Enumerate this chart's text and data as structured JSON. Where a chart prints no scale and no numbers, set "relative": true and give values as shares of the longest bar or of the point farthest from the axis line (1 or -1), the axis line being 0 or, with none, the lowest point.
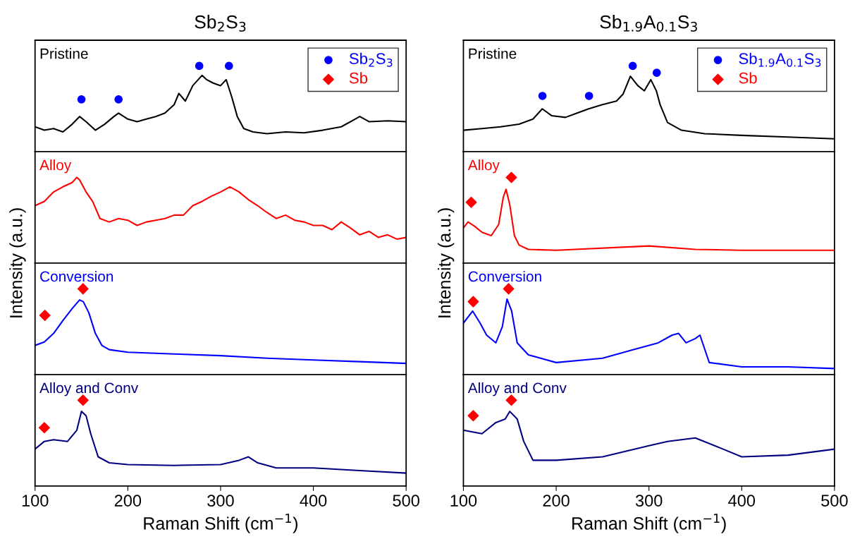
{
  "chart_data": [
    {
      "type": "line",
      "relative": true,
      "title": "Sb$_{2}$S$_{3}$",
      "annotations": [
        "Pristine"
      ],
      "xlim": [
        100,
        500
      ],
      "tick_labels": false,
      "legend": "top right",
      "series": [
        {
          "color": "#000000",
          "x": [
            100,
            110,
            120,
            130,
            140,
            148,
            155,
            165,
            175,
            185,
            190,
            200,
            210,
            220,
            230,
            240,
            250,
            255,
            262,
            270,
            280,
            285,
            292,
            300,
            306,
            312,
            318,
            325,
            335,
            350,
            370,
            390,
            410,
            430,
            445,
            450,
            460,
            480,
            500
          ],
          "values": [
            0.29,
            0.25,
            0.27,
            0.23,
            0.32,
            0.41,
            0.35,
            0.25,
            0.32,
            0.41,
            0.45,
            0.38,
            0.35,
            0.38,
            0.41,
            0.45,
            0.55,
            0.68,
            0.59,
            0.77,
            0.89,
            0.84,
            0.8,
            0.77,
            0.84,
            0.64,
            0.41,
            0.27,
            0.23,
            0.21,
            0.23,
            0.22,
            0.25,
            0.29,
            0.38,
            0.41,
            0.35,
            0.36,
            0.35
          ]
        },
        {
          "type": "scatter",
          "name": "Sb$_{2}$S$_{3}$",
          "color": "#0000ff",
          "marker": "circle",
          "x": [
            150,
            190,
            277,
            309
          ],
          "values": [
            0.61,
            0.61,
            1.0,
            1.0
          ]
        },
        {
          "type": "scatter",
          "name": "Sb",
          "color": "#ff0000",
          "marker": "diamond"
        }
      ]
    },
    {
      "type": "line",
      "relative": true,
      "ylabel": "Intensity (a.u.)",
      "annotations": [
        "Alloy"
      ],
      "xlim": [
        100,
        500
      ],
      "tick_labels": false,
      "series": [
        {
          "color": "#ff0000",
          "x": [
            100,
            110,
            120,
            130,
            140,
            145,
            148,
            155,
            162,
            170,
            180,
            190,
            200,
            210,
            220,
            230,
            240,
            250,
            260,
            270,
            280,
            290,
            300,
            310,
            320,
            330,
            340,
            350,
            360,
            370,
            380,
            390,
            400,
            410,
            420,
            430,
            440,
            450,
            460,
            470,
            480,
            490,
            500
          ],
          "values": [
            0.67,
            0.72,
            0.83,
            0.89,
            0.94,
            1.0,
            0.97,
            0.83,
            0.72,
            0.52,
            0.48,
            0.52,
            0.5,
            0.44,
            0.48,
            0.5,
            0.52,
            0.56,
            0.56,
            0.67,
            0.72,
            0.78,
            0.83,
            0.89,
            0.83,
            0.74,
            0.67,
            0.59,
            0.52,
            0.56,
            0.5,
            0.48,
            0.44,
            0.44,
            0.39,
            0.48,
            0.41,
            0.33,
            0.37,
            0.3,
            0.33,
            0.28,
            0.3
          ]
        }
      ]
    },
    {
      "type": "line",
      "relative": true,
      "annotations": [
        "Conversion"
      ],
      "xlim": [
        100,
        500
      ],
      "tick_labels": false,
      "series": [
        {
          "color": "#0000ff",
          "x": [
            100,
            110,
            120,
            130,
            140,
            148,
            152,
            158,
            165,
            172,
            180,
            200,
            250,
            300,
            350,
            400,
            450,
            500
          ],
          "values": [
            0.34,
            0.38,
            0.48,
            0.63,
            0.77,
            0.87,
            0.85,
            0.72,
            0.48,
            0.34,
            0.29,
            0.26,
            0.24,
            0.22,
            0.19,
            0.17,
            0.15,
            0.13
          ]
        },
        {
          "type": "scatter",
          "color": "#ff0000",
          "marker": "diamond",
          "x": [
            110.6,
            151.7
          ],
          "values": [
            0.69,
            1.0
          ]
        }
      ]
    },
    {
      "type": "line",
      "relative": true,
      "annotations": [
        "Alloy and Conv"
      ],
      "xlabel": "Raman Shift (cm$^{−1}$)",
      "xlim": [
        100,
        500
      ],
      "xticks": [
        100,
        200,
        300,
        400,
        500
      ],
      "tick_labels": "x",
      "series": [
        {
          "color": "#000080",
          "x": [
            100,
            110,
            120,
            135,
            145,
            150,
            155,
            160,
            168,
            180,
            200,
            250,
            300,
            320,
            330,
            340,
            360,
            400,
            450,
            500
          ],
          "values": [
            0.43,
            0.52,
            0.54,
            0.52,
            0.65,
            0.87,
            0.82,
            0.61,
            0.34,
            0.27,
            0.25,
            0.24,
            0.25,
            0.3,
            0.34,
            0.27,
            0.21,
            0.21,
            0.18,
            0.15
          ]
        },
        {
          "type": "scatter",
          "color": "#ff0000",
          "marker": "diamond",
          "x": [
            110,
            151.7
          ],
          "values": [
            0.68,
            1.0
          ]
        }
      ]
    },
    {
      "type": "line",
      "relative": true,
      "title": "Sb$_{1.9}$A$_{0.1}$S$_{3}$",
      "annotations": [
        "Pristine"
      ],
      "xlim": [
        100,
        500
      ],
      "tick_labels": false,
      "legend": "top right",
      "series": [
        {
          "color": "#000000",
          "x": [
            100,
            120,
            140,
            160,
            175,
            185,
            195,
            210,
            220,
            235,
            250,
            265,
            272,
            280,
            288,
            295,
            302,
            308,
            312,
            320,
            335,
            360,
            400,
            450,
            500
          ],
          "values": [
            0.25,
            0.27,
            0.29,
            0.32,
            0.38,
            0.5,
            0.42,
            0.4,
            0.44,
            0.5,
            0.55,
            0.59,
            0.67,
            0.88,
            0.77,
            0.71,
            0.84,
            0.71,
            0.55,
            0.34,
            0.25,
            0.21,
            0.19,
            0.17,
            0.15
          ]
        },
        {
          "type": "scatter",
          "name": "Sb$_{1.9}$A$_{0.1}$S$_{3}$",
          "color": "#0000ff",
          "marker": "circle",
          "x": [
            185.2,
            235.4,
            282.5,
            308.4
          ],
          "values": [
            0.65,
            0.65,
            1.0,
            0.92
          ]
        },
        {
          "type": "scatter",
          "name": "Sb",
          "color": "#ff0000",
          "marker": "diamond"
        }
      ]
    },
    {
      "type": "line",
      "relative": true,
      "ylabel": "Intensity (a.u.)",
      "annotations": [
        "Alloy"
      ],
      "xlim": [
        100,
        500
      ],
      "tick_labels": false,
      "series": [
        {
          "color": "#ff0000",
          "x": [
            100,
            105,
            112,
            120,
            130,
            138,
            143,
            146,
            150,
            155,
            160,
            170,
            200,
            300,
            350,
            400,
            500
          ],
          "values": [
            0.41,
            0.48,
            0.43,
            0.36,
            0.32,
            0.45,
            0.77,
            0.86,
            0.68,
            0.32,
            0.21,
            0.16,
            0.15,
            0.2,
            0.16,
            0.15,
            0.15
          ]
        },
        {
          "type": "scatter",
          "color": "#ff0000",
          "marker": "diamond",
          "x": [
            108.4,
            151.7
          ],
          "values": [
            0.71,
            1.0
          ]
        }
      ]
    },
    {
      "type": "line",
      "relative": true,
      "annotations": [
        "Conversion"
      ],
      "xlim": [
        100,
        500
      ],
      "tick_labels": false,
      "series": [
        {
          "color": "#0000ff",
          "x": [
            100,
            110,
            118,
            125,
            135,
            142,
            147,
            152,
            158,
            170,
            200,
            250,
            280,
            310,
            325,
            332,
            340,
            350,
            355,
            365,
            400,
            450,
            500
          ],
          "values": [
            0.6,
            0.74,
            0.6,
            0.46,
            0.37,
            0.56,
            0.88,
            0.74,
            0.37,
            0.23,
            0.14,
            0.19,
            0.28,
            0.37,
            0.46,
            0.48,
            0.37,
            0.42,
            0.46,
            0.14,
            0.09,
            0.09,
            0.07
          ]
        },
        {
          "type": "scatter",
          "color": "#ff0000",
          "marker": "diamond",
          "x": [
            110.6,
            148.7
          ],
          "values": [
            0.85,
            1.0
          ]
        }
      ]
    },
    {
      "type": "line",
      "relative": true,
      "annotations": [
        "Alloy and Conv"
      ],
      "xlabel": "Raman Shift (cm$^{−1}$)",
      "xlim": [
        100,
        500
      ],
      "xticks": [
        100,
        200,
        300,
        400,
        500
      ],
      "tick_labels": "x",
      "series": [
        {
          "color": "#000080",
          "x": [
            100,
            120,
            135,
            145,
            150,
            158,
            165,
            175,
            200,
            250,
            300,
            320,
            350,
            380,
            400,
            450,
            500
          ],
          "values": [
            0.65,
            0.61,
            0.74,
            0.78,
            0.87,
            0.78,
            0.52,
            0.3,
            0.3,
            0.34,
            0.47,
            0.52,
            0.56,
            0.43,
            0.34,
            0.36,
            0.43
          ]
        },
        {
          "type": "scatter",
          "color": "#ff0000",
          "marker": "diamond",
          "x": [
            110.6,
            151.7
          ],
          "values": [
            0.82,
            1.0
          ]
        }
      ]
    }
  ]
}
